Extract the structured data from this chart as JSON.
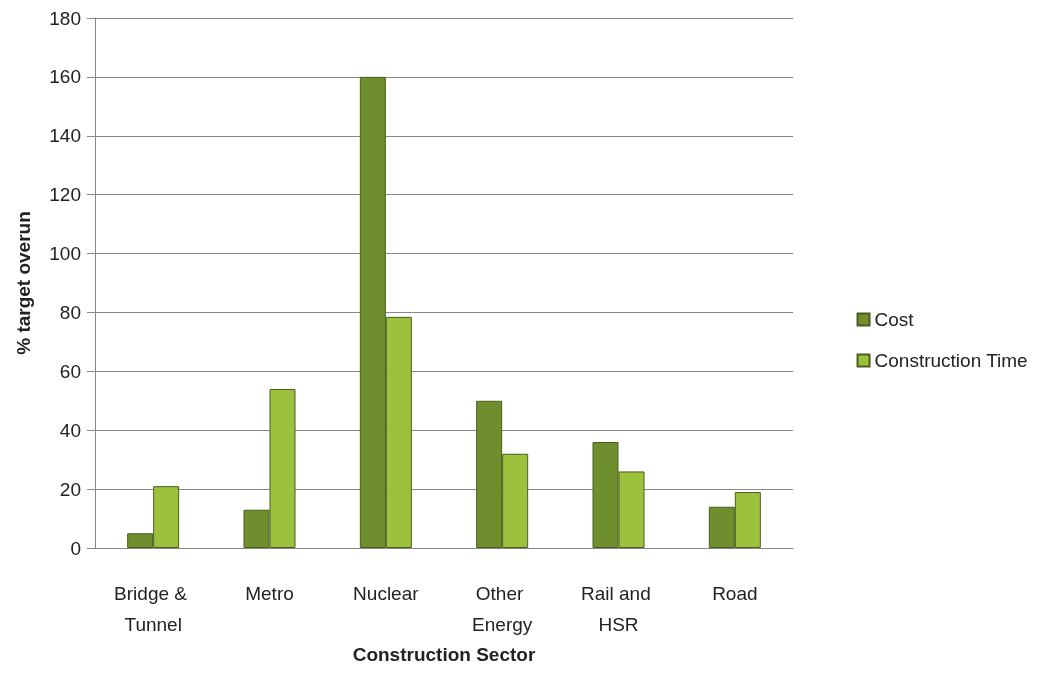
{
  "chart_data": {
    "type": "bar",
    "xlabel": "Construction Sector",
    "ylabel": "% target overun",
    "categories": [
      "Bridge & Tunnel",
      "Metro",
      "Nuclear",
      "Other Energy",
      "Rail and HSR",
      "Road"
    ],
    "series": [
      {
        "name": "Cost",
        "color": "#6f8f2e",
        "values": [
          5,
          13,
          160,
          50,
          36,
          14
        ]
      },
      {
        "name": "Construction Time",
        "color": "#9cc23d",
        "values": [
          21,
          54,
          78.5,
          32,
          26,
          19
        ]
      }
    ],
    "ylim": [
      0,
      180
    ],
    "yticks": [
      0,
      20,
      40,
      60,
      80,
      100,
      120,
      140,
      160,
      180
    ],
    "grid": "y",
    "legend": "right"
  }
}
